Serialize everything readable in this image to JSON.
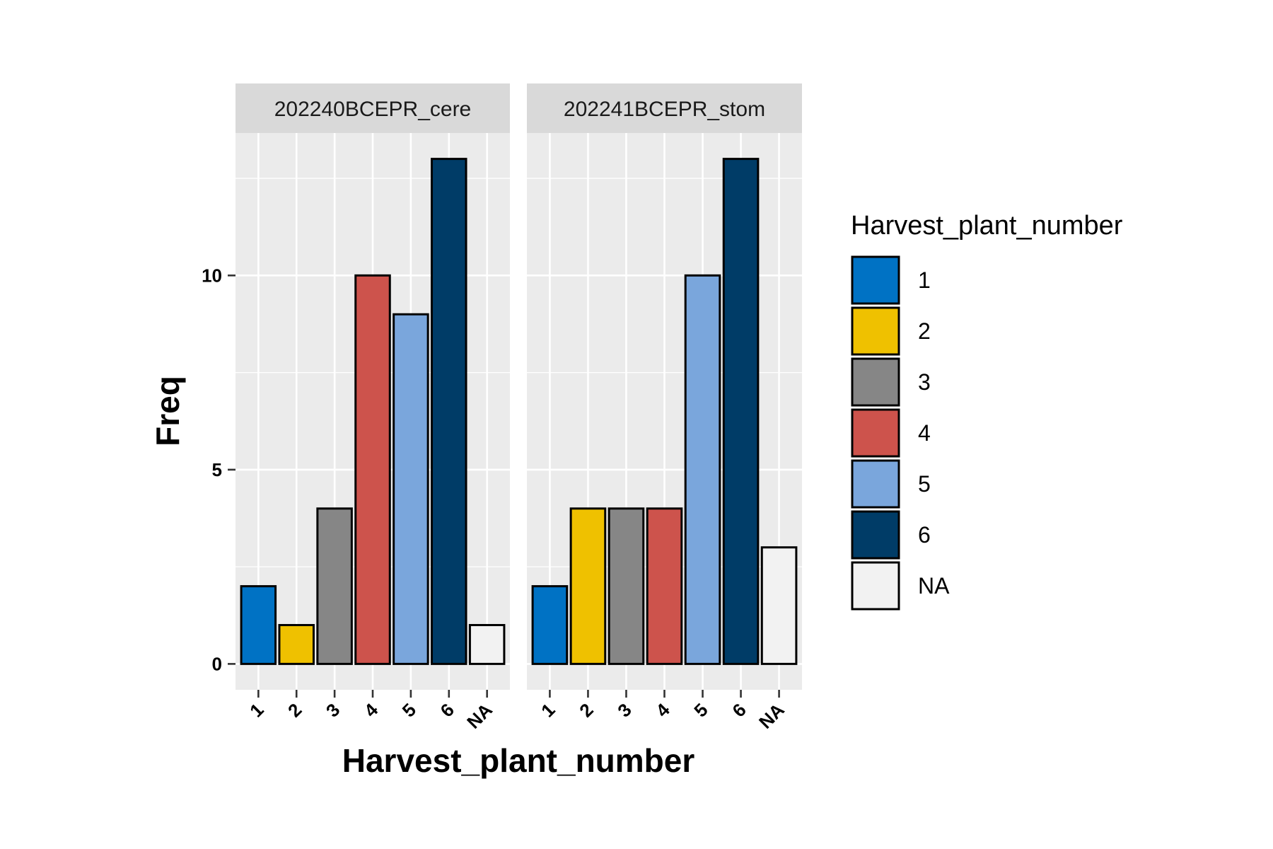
{
  "chart_data": {
    "type": "bar",
    "facets": [
      "202240BCEPR_cere",
      "202241BCEPR_stom"
    ],
    "categories": [
      "1",
      "2",
      "3",
      "4",
      "5",
      "6",
      "NA"
    ],
    "series": [
      {
        "facet": "202240BCEPR_cere",
        "values": [
          2,
          1,
          4,
          10,
          9,
          13,
          1
        ]
      },
      {
        "facet": "202241BCEPR_stom",
        "values": [
          2,
          4,
          4,
          4,
          10,
          13,
          3
        ]
      }
    ],
    "colors": {
      "1": "#0072c4",
      "2": "#efc100",
      "3": "#868686",
      "4": "#cd534c",
      "5": "#7aa6dc",
      "6": "#003c67",
      "NA": "#f2f2f2"
    },
    "xlabel": "Harvest_plant_number",
    "ylabel": "Freq",
    "ylim": [
      -0.6667,
      13.6667
    ],
    "yticks": [
      0,
      5,
      10
    ],
    "grid": true,
    "legend": {
      "title": "Harvest_plant_number",
      "placement": "right",
      "items": [
        "1",
        "2",
        "3",
        "4",
        "5",
        "6",
        "NA"
      ]
    }
  }
}
